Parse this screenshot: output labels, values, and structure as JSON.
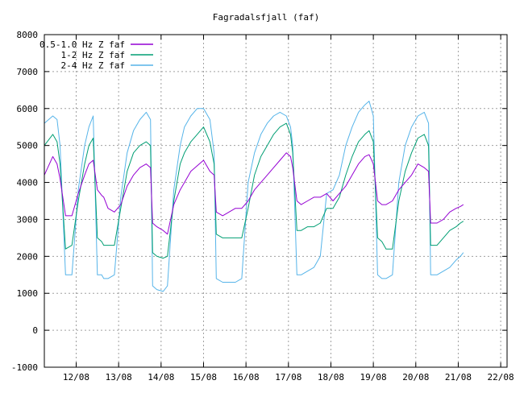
{
  "chart_data": {
    "type": "line",
    "title": "Fagradalsfjall (faf)",
    "xlabel": "",
    "ylabel": "",
    "ylim": [
      -1000,
      8000
    ],
    "yticks": [
      -1000,
      0,
      1000,
      2000,
      3000,
      4000,
      5000,
      6000,
      7000,
      8000
    ],
    "xlim": [
      11.25,
      22.15
    ],
    "xticks": [
      {
        "x": 12,
        "label": "12/08"
      },
      {
        "x": 13,
        "label": "13/08"
      },
      {
        "x": 14,
        "label": "14/08"
      },
      {
        "x": 15,
        "label": "15/08"
      },
      {
        "x": 16,
        "label": "16/08"
      },
      {
        "x": 17,
        "label": "17/08"
      },
      {
        "x": 18,
        "label": "18/08"
      },
      {
        "x": 19,
        "label": "19/08"
      },
      {
        "x": 20,
        "label": "20/08"
      },
      {
        "x": 21,
        "label": "21/08"
      },
      {
        "x": 22,
        "label": "22/08"
      }
    ],
    "grid": true,
    "legend_position": "top-left",
    "x": [
      11.25,
      11.45,
      11.55,
      11.62,
      11.75,
      11.9,
      12.05,
      12.2,
      12.3,
      12.4,
      12.5,
      12.6,
      12.65,
      12.75,
      12.9,
      13.05,
      13.2,
      13.35,
      13.5,
      13.65,
      13.75,
      13.8,
      13.9,
      14.05,
      14.15,
      14.3,
      14.45,
      14.55,
      14.7,
      14.85,
      15.0,
      15.15,
      15.25,
      15.3,
      15.45,
      15.6,
      15.75,
      15.9,
      16.05,
      16.2,
      16.35,
      16.5,
      16.65,
      16.8,
      16.95,
      17.05,
      17.1,
      17.2,
      17.3,
      17.45,
      17.6,
      17.75,
      17.9,
      18.05,
      18.2,
      18.35,
      18.5,
      18.65,
      18.8,
      18.9,
      19.0,
      19.1,
      19.2,
      19.3,
      19.45,
      19.6,
      19.75,
      19.9,
      20.05,
      20.2,
      20.3,
      20.35,
      20.5,
      20.65,
      20.8,
      20.95,
      21.05,
      21.12
    ],
    "series": [
      {
        "name": "0.5-1.0 Hz Z faf",
        "color": "#9400d3",
        "values": [
          4200,
          4700,
          4500,
          4100,
          3100,
          3100,
          3700,
          4200,
          4500,
          4600,
          3800,
          3650,
          3600,
          3300,
          3200,
          3400,
          3900,
          4200,
          4400,
          4500,
          4400,
          2900,
          2800,
          2700,
          2600,
          3400,
          3800,
          4000,
          4300,
          4450,
          4600,
          4300,
          4200,
          3200,
          3100,
          3200,
          3300,
          3300,
          3500,
          3800,
          4000,
          4200,
          4400,
          4600,
          4800,
          4700,
          4400,
          3500,
          3400,
          3500,
          3600,
          3600,
          3700,
          3500,
          3700,
          3900,
          4200,
          4500,
          4700,
          4750,
          4500,
          3500,
          3400,
          3400,
          3500,
          3800,
          4000,
          4200,
          4500,
          4400,
          4300,
          2900,
          2900,
          3000,
          3200,
          3300,
          3350,
          3400
        ]
      },
      {
        "name": "1-2 Hz Z faf",
        "color": "#009e73",
        "values": [
          5000,
          5300,
          5100,
          4500,
          2200,
          2300,
          3500,
          4500,
          5000,
          5200,
          2500,
          2400,
          2300,
          2300,
          2300,
          3300,
          4300,
          4800,
          5000,
          5100,
          5000,
          2100,
          2000,
          1950,
          2000,
          3500,
          4500,
          4800,
          5100,
          5300,
          5500,
          5100,
          4500,
          2600,
          2500,
          2500,
          2500,
          2500,
          3300,
          4200,
          4700,
          5000,
          5300,
          5500,
          5600,
          5300,
          4800,
          2700,
          2700,
          2800,
          2800,
          2900,
          3300,
          3300,
          3600,
          4200,
          4700,
          5100,
          5300,
          5400,
          5100,
          2500,
          2400,
          2200,
          2200,
          3500,
          4300,
          4800,
          5200,
          5300,
          5000,
          2300,
          2300,
          2500,
          2700,
          2800,
          2900,
          2950
        ]
      },
      {
        "name": "2-4 Hz Z faf",
        "color": "#56b4e9",
        "values": [
          5600,
          5800,
          5700,
          5000,
          1500,
          1500,
          3800,
          5000,
          5500,
          5800,
          1500,
          1500,
          1400,
          1400,
          1500,
          3600,
          4800,
          5400,
          5700,
          5900,
          5700,
          1200,
          1100,
          1050,
          1200,
          3800,
          5000,
          5500,
          5800,
          6000,
          6000,
          5700,
          4800,
          1400,
          1300,
          1300,
          1300,
          1400,
          4000,
          4800,
          5300,
          5600,
          5800,
          5900,
          5800,
          5500,
          5000,
          1500,
          1500,
          1600,
          1700,
          2000,
          3700,
          3800,
          4200,
          5000,
          5500,
          5900,
          6100,
          6200,
          5800,
          1500,
          1400,
          1400,
          1500,
          4000,
          5000,
          5500,
          5800,
          5900,
          5600,
          1500,
          1500,
          1600,
          1700,
          1900,
          2000,
          2100
        ]
      }
    ],
    "annotations": []
  }
}
